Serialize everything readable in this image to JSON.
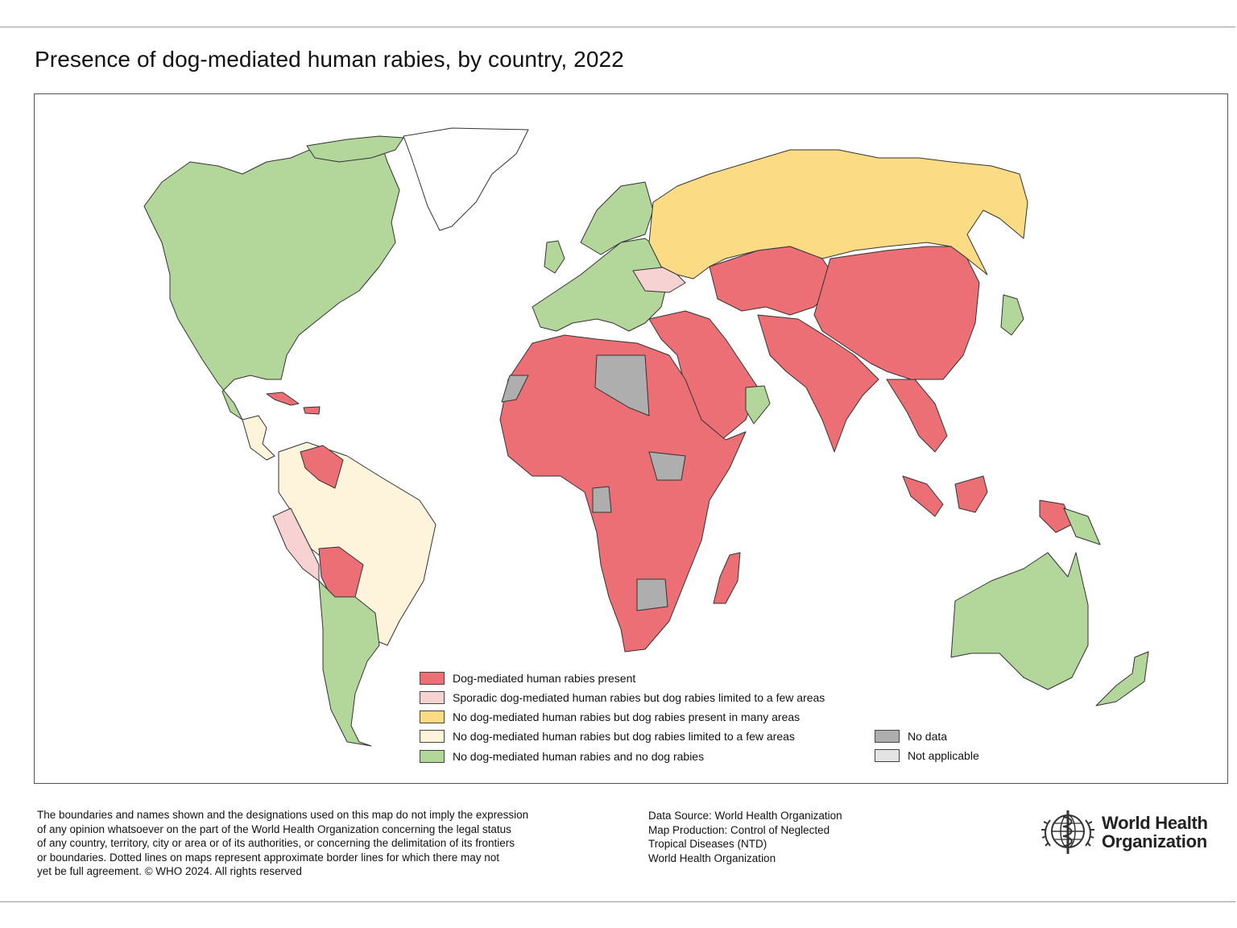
{
  "title": "Presence of dog-mediated human rabies, by country, 2022",
  "colors": {
    "present": "#ec6f75",
    "sporadic": "#f7d2d2",
    "no_human_many_areas": "#fbdc85",
    "no_human_few_areas": "#fef4dc",
    "no_human_no_dog": "#b3d69b",
    "no_data": "#aeaeae",
    "not_applicable": "#e3e3e3",
    "border": "#333333"
  },
  "legend": {
    "items": [
      {
        "label": "Dog-mediated human rabies present",
        "color": "#ec6f75"
      },
      {
        "label": "Sporadic dog-mediated human rabies but dog rabies limited to a few areas",
        "color": "#f7d2d2"
      },
      {
        "label": "No dog-mediated human rabies but dog rabies present in many areas",
        "color": "#fbdc85"
      },
      {
        "label": "No dog-mediated human rabies but dog rabies limited to a few areas",
        "color": "#fef4dc"
      },
      {
        "label": "No dog-mediated human rabies and no dog rabies",
        "color": "#b3d69b"
      }
    ],
    "secondary": [
      {
        "label": "No data",
        "color": "#aeaeae"
      },
      {
        "label": "Not applicable",
        "color": "#e3e3e3"
      }
    ]
  },
  "disclaimer_lines": [
    "The boundaries and names shown and the designations used on this map do not imply the expression",
    "of any opinion whatsoever on the part of the World Health Organization concerning the legal status",
    "of any country, territory, city or area or of its authorities, or concerning the delimitation of its frontiers",
    "or boundaries. Dotted lines on maps represent approximate border lines for which there may not",
    "yet be full agreement. © WHO 2024. All rights reserved"
  ],
  "source_lines": [
    "Data Source: World Health Organization",
    "Map Production: Control of Neglected",
    "Tropical Diseases (NTD)",
    "World Health Organization"
  ],
  "logo": {
    "line1": "World Health",
    "line2": "Organization"
  }
}
